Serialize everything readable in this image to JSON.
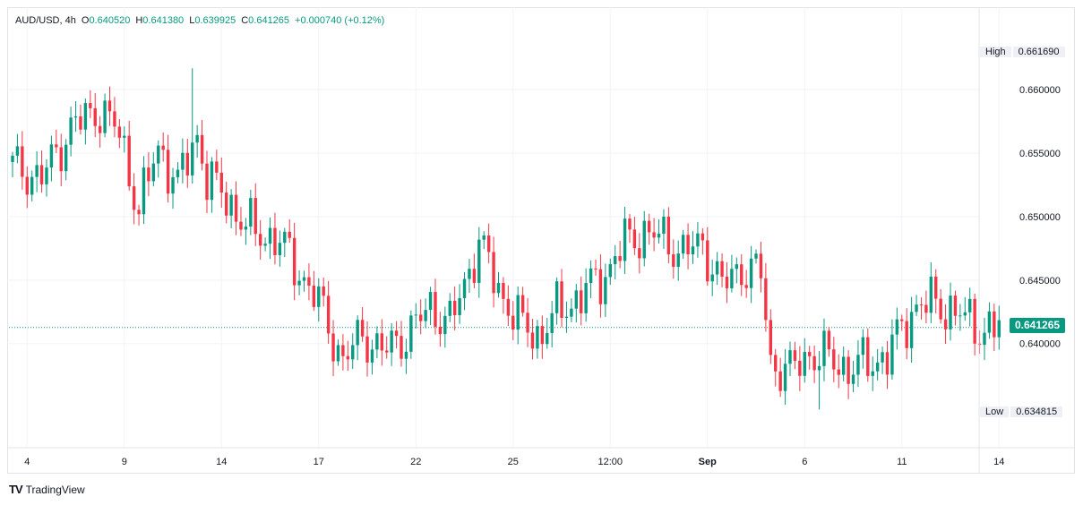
{
  "legend": {
    "symbol": "AUD/USD",
    "interval": "4h",
    "open_key": "O",
    "open": "0.640520",
    "high_key": "H",
    "high": "0.641380",
    "low_key": "L",
    "low": "0.639925",
    "close_key": "C",
    "close": "0.641265",
    "change": "+0.000740 (+0.12%)"
  },
  "markers": {
    "high_label": "High",
    "high_value": "0.661690",
    "low_label": "Low",
    "low_value": "0.634815",
    "last_price": "0.641265"
  },
  "brand": {
    "logo": "TV",
    "name": "TradingView"
  },
  "colors": {
    "up": "#089981",
    "down": "#f23645",
    "grid": "#f0f3fa",
    "axis_text": "#131722",
    "last_line": "#089981"
  },
  "chart_data": {
    "type": "candlestick",
    "yaxis": {
      "ticks": [
        0.64,
        0.645,
        0.65,
        0.655,
        0.66
      ],
      "tick_labels": [
        "0.640000",
        "0.645000",
        "0.650000",
        "0.655000",
        "0.660000"
      ],
      "range": [
        0.6318,
        0.6665
      ],
      "side": "right"
    },
    "xaxis": {
      "tick_labels": [
        "4",
        "9",
        "14",
        "17",
        "22",
        "25",
        "12:00",
        "Sep",
        "6",
        "11",
        "14"
      ],
      "tick_bars": [
        3,
        23,
        43,
        63,
        83,
        103,
        123,
        143,
        163,
        183,
        203
      ],
      "bar_count": 212
    },
    "grid": true,
    "last_price": 0.641265,
    "summary": {
      "high": 0.66169,
      "low": 0.634815,
      "start_close": 0.6542,
      "end_close": 0.641265,
      "trend": "sideways-down"
    }
  }
}
